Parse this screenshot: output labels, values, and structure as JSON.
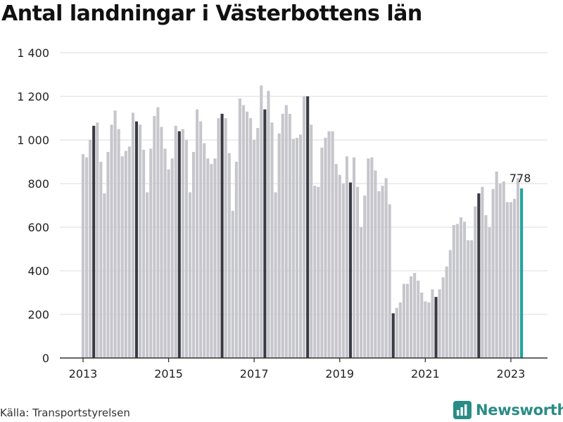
{
  "title": "Antal landningar i Västerbottens län",
  "source": "Källa: Transportstyrelsen",
  "brand": "Newsworthy",
  "colors": {
    "base": "#c6c6cc",
    "highlight": "#3a3a44",
    "latest": "#23a39c",
    "grid": "#e2e2e2",
    "brand": "#2a8c86"
  },
  "chart_data": {
    "type": "bar",
    "ylim": [
      0,
      1400
    ],
    "yticks": [
      0,
      200,
      400,
      600,
      800,
      1000,
      1200,
      1400
    ],
    "ytick_labels": [
      "0",
      "200",
      "400",
      "600",
      "800",
      "1 000",
      "1 200",
      "1 400"
    ],
    "xticks": [
      "2013",
      "2015",
      "2017",
      "2019",
      "2021",
      "2023"
    ],
    "annotation": "778",
    "grid": true,
    "start": "2013-01",
    "values": [
      935,
      920,
      1000,
      1065,
      1080,
      900,
      755,
      945,
      1070,
      1135,
      1050,
      925,
      950,
      970,
      1125,
      1085,
      1070,
      955,
      760,
      960,
      1110,
      1150,
      1060,
      960,
      865,
      915,
      1065,
      1040,
      1050,
      1000,
      760,
      945,
      1140,
      1085,
      985,
      915,
      890,
      915,
      1100,
      1120,
      1100,
      940,
      675,
      900,
      1190,
      1160,
      1130,
      1100,
      1000,
      1055,
      1250,
      1140,
      1225,
      1080,
      760,
      1030,
      1120,
      1160,
      1120,
      1005,
      1010,
      1025,
      1200,
      1200,
      1070,
      790,
      785,
      965,
      1010,
      1040,
      1040,
      890,
      840,
      800,
      925,
      805,
      920,
      785,
      600,
      745,
      915,
      920,
      860,
      765,
      790,
      825,
      705,
      205,
      230,
      255,
      340,
      340,
      375,
      390,
      355,
      300,
      260,
      255,
      315,
      280,
      315,
      370,
      420,
      495,
      610,
      615,
      645,
      625,
      540,
      540,
      695,
      755,
      785,
      655,
      600,
      775,
      855,
      800,
      810,
      715,
      715,
      730,
      825,
      778
    ],
    "highlight_indices": [
      3,
      15,
      27,
      39,
      51,
      63,
      75,
      87,
      99,
      111
    ],
    "latest_index": 123
  }
}
